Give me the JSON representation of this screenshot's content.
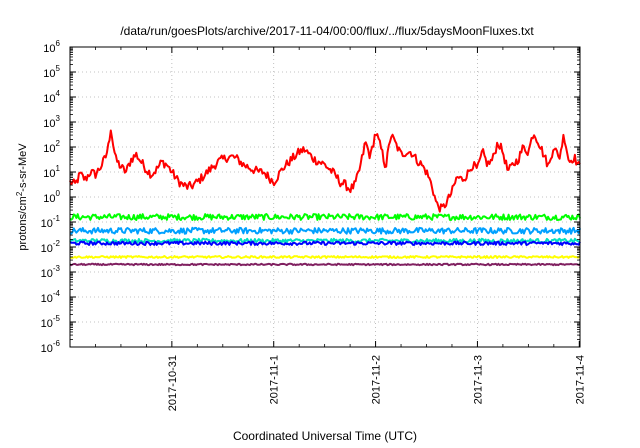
{
  "chart_data": {
    "type": "line",
    "title": "/data/run/goesPlots/archive/2017-11-04/00:00/flux/../flux/5daysMoonFluxes.txt",
    "xlabel": "Coordinated Universal Time (UTC)",
    "ylabel_main": "protons/cm",
    "ylabel_sup": "2",
    "ylabel_rest": "-s-sr-MeV",
    "y_scale": "log",
    "ylim_exp": [
      -6,
      6
    ],
    "yticks": [
      {
        "base": "10",
        "exp": "-6"
      },
      {
        "base": "10",
        "exp": "-5"
      },
      {
        "base": "10",
        "exp": "-4"
      },
      {
        "base": "10",
        "exp": "-3"
      },
      {
        "base": "10",
        "exp": "-2"
      },
      {
        "base": "10",
        "exp": "-1"
      },
      {
        "base": "10",
        "exp": "0"
      },
      {
        "base": "10",
        "exp": "1"
      },
      {
        "base": "10",
        "exp": "2"
      },
      {
        "base": "10",
        "exp": "3"
      },
      {
        "base": "10",
        "exp": "4"
      },
      {
        "base": "10",
        "exp": "5"
      },
      {
        "base": "10",
        "exp": "6"
      }
    ],
    "xlim": [
      "2017-10-30T00:00",
      "2017-11-04T00:10"
    ],
    "xticks": [
      "2017-10-31",
      "2017-11-1",
      "2017-11-2",
      "2017-11-3",
      "2017-11-4"
    ],
    "grid": true,
    "series": [
      {
        "color": "#ff0000",
        "wiggle": 0.18,
        "log_points": [
          [
            0.0,
            0.6
          ],
          [
            0.05,
            0.5
          ],
          [
            0.1,
            0.9
          ],
          [
            0.15,
            0.7
          ],
          [
            0.2,
            1.0
          ],
          [
            0.25,
            0.9
          ],
          [
            0.3,
            1.2
          ],
          [
            0.35,
            1.6
          ],
          [
            0.38,
            2.1
          ],
          [
            0.4,
            2.8
          ],
          [
            0.42,
            2.2
          ],
          [
            0.45,
            1.5
          ],
          [
            0.5,
            1.2
          ],
          [
            0.55,
            1.0
          ],
          [
            0.6,
            1.5
          ],
          [
            0.65,
            1.7
          ],
          [
            0.7,
            1.4
          ],
          [
            0.75,
            1.1
          ],
          [
            0.8,
            0.9
          ],
          [
            0.85,
            1.1
          ],
          [
            0.9,
            1.4
          ],
          [
            0.95,
            1.3
          ],
          [
            1.0,
            1.0
          ],
          [
            1.05,
            0.7
          ],
          [
            1.1,
            0.5
          ],
          [
            1.15,
            0.4
          ],
          [
            1.2,
            0.45
          ],
          [
            1.25,
            0.6
          ],
          [
            1.3,
            0.8
          ],
          [
            1.35,
            1.0
          ],
          [
            1.4,
            1.2
          ],
          [
            1.45,
            1.4
          ],
          [
            1.5,
            1.5
          ],
          [
            1.55,
            1.6
          ],
          [
            1.6,
            1.6
          ],
          [
            1.65,
            1.5
          ],
          [
            1.7,
            1.3
          ],
          [
            1.75,
            1.2
          ],
          [
            1.8,
            1.1
          ],
          [
            1.85,
            1.0
          ],
          [
            1.9,
            1.0
          ],
          [
            1.95,
            0.8
          ],
          [
            2.0,
            0.6
          ],
          [
            2.05,
            0.9
          ],
          [
            2.1,
            1.2
          ],
          [
            2.15,
            1.4
          ],
          [
            2.2,
            1.6
          ],
          [
            2.25,
            1.8
          ],
          [
            2.3,
            1.9
          ],
          [
            2.35,
            1.7
          ],
          [
            2.4,
            1.5
          ],
          [
            2.45,
            1.4
          ],
          [
            2.5,
            1.3
          ],
          [
            2.55,
            1.1
          ],
          [
            2.6,
            0.9
          ],
          [
            2.65,
            0.6
          ],
          [
            2.7,
            0.5
          ],
          [
            2.75,
            0.3
          ],
          [
            2.8,
            0.5
          ],
          [
            2.85,
            1.2
          ],
          [
            2.9,
            2.2
          ],
          [
            2.95,
            1.6
          ],
          [
            3.0,
            2.6
          ],
          [
            3.05,
            2.0
          ],
          [
            3.1,
            1.2
          ],
          [
            3.15,
            2.5
          ],
          [
            3.2,
            2.1
          ],
          [
            3.25,
            1.7
          ],
          [
            3.3,
            1.8
          ],
          [
            3.35,
            1.8
          ],
          [
            3.4,
            1.5
          ],
          [
            3.45,
            1.3
          ],
          [
            3.5,
            1.0
          ],
          [
            3.55,
            0.5
          ],
          [
            3.6,
            -0.3
          ],
          [
            3.65,
            -0.5
          ],
          [
            3.7,
            -0.2
          ],
          [
            3.75,
            0.2
          ],
          [
            3.8,
            0.8
          ],
          [
            3.85,
            0.7
          ],
          [
            3.9,
            0.9
          ],
          [
            3.95,
            1.3
          ],
          [
            4.0,
            1.1
          ],
          [
            4.05,
            1.8
          ],
          [
            4.1,
            1.3
          ],
          [
            4.15,
            1.5
          ],
          [
            4.2,
            2.2
          ],
          [
            4.25,
            1.8
          ],
          [
            4.3,
            1.0
          ],
          [
            4.35,
            1.3
          ],
          [
            4.4,
            1.5
          ],
          [
            4.45,
            2.0
          ],
          [
            4.5,
            1.8
          ],
          [
            4.55,
            2.6
          ],
          [
            4.6,
            2.2
          ],
          [
            4.65,
            1.7
          ],
          [
            4.7,
            1.2
          ],
          [
            4.75,
            2.1
          ],
          [
            4.8,
            1.5
          ],
          [
            4.85,
            2.5
          ],
          [
            4.9,
            1.4
          ],
          [
            4.95,
            1.6
          ],
          [
            5.0,
            1.2
          ]
        ]
      },
      {
        "color": "#00ff00",
        "wiggle": 0.12,
        "log_points": [
          [
            0,
            -0.8
          ],
          [
            5.0,
            -0.8
          ]
        ]
      },
      {
        "color": "#00a0ff",
        "wiggle": 0.12,
        "log_points": [
          [
            0,
            -1.35
          ],
          [
            5.0,
            -1.35
          ]
        ]
      },
      {
        "color": "#00e0c0",
        "wiggle": 0.08,
        "log_points": [
          [
            0,
            -1.75
          ],
          [
            5.0,
            -1.75
          ]
        ]
      },
      {
        "color": "#0000ff",
        "wiggle": 0.07,
        "log_points": [
          [
            0,
            -1.85
          ],
          [
            5.0,
            -1.85
          ]
        ]
      },
      {
        "color": "#ffff00",
        "wiggle": 0.04,
        "log_points": [
          [
            0,
            -2.4
          ],
          [
            5.0,
            -2.4
          ]
        ]
      },
      {
        "color": "#802060",
        "wiggle": 0.03,
        "log_points": [
          [
            0,
            -2.7
          ],
          [
            5.0,
            -2.7
          ]
        ]
      }
    ]
  }
}
